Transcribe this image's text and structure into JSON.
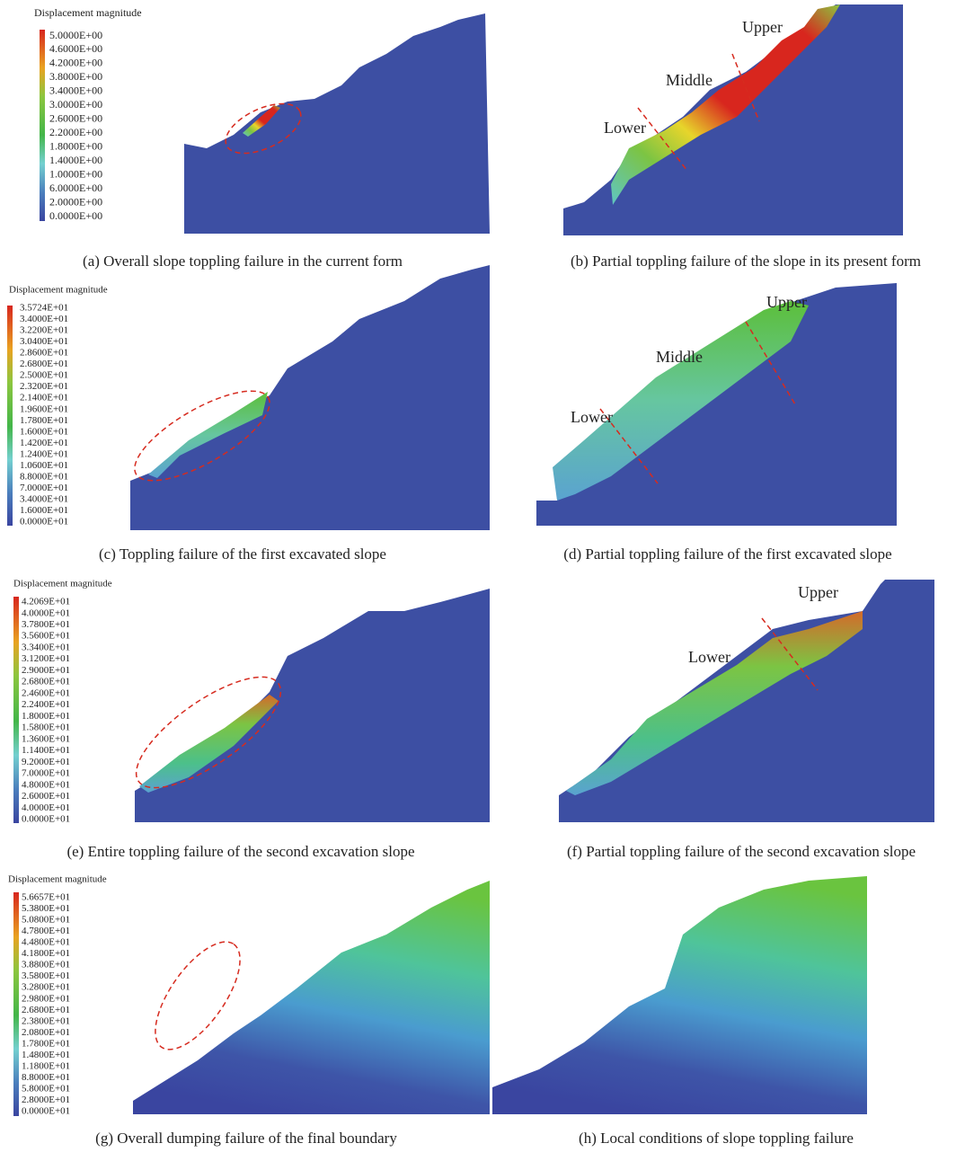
{
  "panels": [
    {
      "caption": "(a) Overall slope toppling failure in the current form",
      "legend": {
        "title": "Displacement magnitude",
        "labels": [
          "5.0000E+00",
          "4.6000E+00",
          "4.2000E+00",
          "3.8000E+00",
          "3.4000E+00",
          "3.0000E+00",
          "2.6000E+00",
          "2.2000E+00",
          "1.8000E+00",
          "1.4000E+00",
          "1.0000E+00",
          "6.0000E+00",
          "2.0000E+00",
          "0.0000E+00"
        ]
      }
    },
    {
      "caption": "(b) Partial toppling failure of the slope in its present form",
      "zones": [
        "Upper",
        "Middle",
        "Lower"
      ]
    },
    {
      "caption": "(c) Toppling failure of the first excavated slope",
      "legend": {
        "title": "Displacement magnitude",
        "labels": [
          "3.5724E+01",
          "3.4000E+01",
          "3.2200E+01",
          "3.0400E+01",
          "2.8600E+01",
          "2.6800E+01",
          "2.5000E+01",
          "2.3200E+01",
          "2.1400E+01",
          "1.9600E+01",
          "1.7800E+01",
          "1.6000E+01",
          "1.4200E+01",
          "1.2400E+01",
          "1.0600E+01",
          "8.8000E+01",
          "7.0000E+01",
          "3.4000E+01",
          "1.6000E+01",
          "0.0000E+01"
        ]
      }
    },
    {
      "caption": "(d) Partial toppling failure of the first excavated slope",
      "zones": [
        "Upper",
        "Middle",
        "Lower"
      ]
    },
    {
      "caption": "(e) Entire toppling failure of the second excavation slope",
      "legend": {
        "title": "Displacement magnitude",
        "labels": [
          "4.2069E+01",
          "4.0000E+01",
          "3.7800E+01",
          "3.5600E+01",
          "3.3400E+01",
          "3.1200E+01",
          "2.9000E+01",
          "2.6800E+01",
          "2.4600E+01",
          "2.2400E+01",
          "1.8000E+01",
          "1.5800E+01",
          "1.3600E+01",
          "1.1400E+01",
          "9.2000E+01",
          "7.0000E+01",
          "4.8000E+01",
          "2.6000E+01",
          "4.0000E+01",
          "0.0000E+01"
        ]
      }
    },
    {
      "caption": "(f) Partial toppling failure of the second excavation slope",
      "zones": [
        "Upper",
        "Lower"
      ]
    },
    {
      "caption": "(g) Overall dumping failure of the final boundary",
      "legend": {
        "title": "Displacement magnitude",
        "labels": [
          "5.6657E+01",
          "5.3800E+01",
          "5.0800E+01",
          "4.7800E+01",
          "4.4800E+01",
          "4.1800E+01",
          "3.8800E+01",
          "3.5800E+01",
          "3.2800E+01",
          "2.9800E+01",
          "2.6800E+01",
          "2.3800E+01",
          "2.0800E+01",
          "1.7800E+01",
          "1.4800E+01",
          "1.1800E+01",
          "8.8000E+01",
          "5.8000E+01",
          "2.8000E+01",
          "0.0000E+01"
        ]
      }
    },
    {
      "caption": "(h) Local conditions of slope toppling failure"
    }
  ]
}
